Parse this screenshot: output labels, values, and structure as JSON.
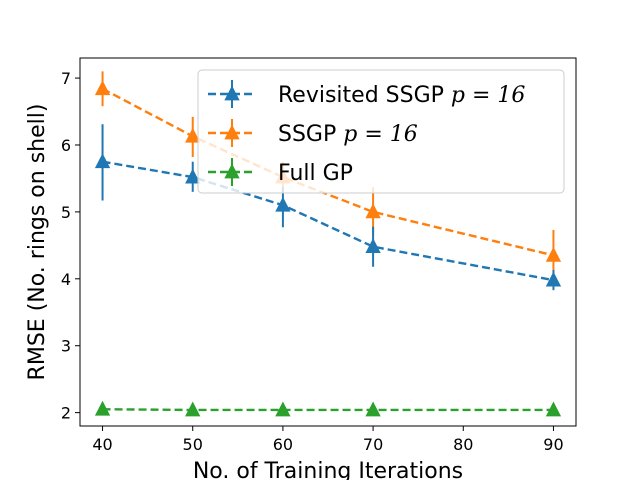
{
  "chart_data": {
    "type": "line",
    "title": "",
    "xlabel": "No. of Training Iterations",
    "ylabel": "RMSE (No. rings on shell)",
    "xlim": [
      37.5,
      92.5
    ],
    "ylim": [
      1.8,
      7.3
    ],
    "x": [
      40,
      50,
      60,
      70,
      90
    ],
    "xticks": [
      40,
      50,
      60,
      70,
      80,
      90
    ],
    "yticks": [
      2,
      3,
      4,
      5,
      6,
      7
    ],
    "grid": false,
    "legend_position": "top-right",
    "series": [
      {
        "name": "Revisited SSGP",
        "param": "p = 16",
        "color": "#1f77b4",
        "linestyle": "dashed",
        "marker": "triangle",
        "values": [
          5.75,
          5.52,
          5.1,
          4.48,
          3.98
        ],
        "err_low": [
          5.17,
          5.3,
          4.77,
          4.18,
          3.83
        ],
        "err_high": [
          6.31,
          5.75,
          5.37,
          4.78,
          4.13
        ]
      },
      {
        "name": "SSGP",
        "param": "p = 16",
        "color": "#ff7f0e",
        "linestyle": "dashed",
        "marker": "triangle",
        "values": [
          6.84,
          6.13,
          5.52,
          5.0,
          4.35
        ],
        "err_low": [
          6.58,
          5.82,
          5.28,
          4.65,
          4.03
        ],
        "err_high": [
          7.1,
          6.42,
          5.75,
          5.37,
          4.73
        ]
      },
      {
        "name": "Full GP",
        "param": "",
        "color": "#2ca02c",
        "linestyle": "dashed",
        "marker": "triangle",
        "values": [
          2.05,
          2.04,
          2.04,
          2.04,
          2.04
        ],
        "err_low": [
          2.03,
          2.02,
          2.02,
          2.02,
          2.02
        ],
        "err_high": [
          2.07,
          2.06,
          2.06,
          2.06,
          2.06
        ]
      }
    ]
  }
}
